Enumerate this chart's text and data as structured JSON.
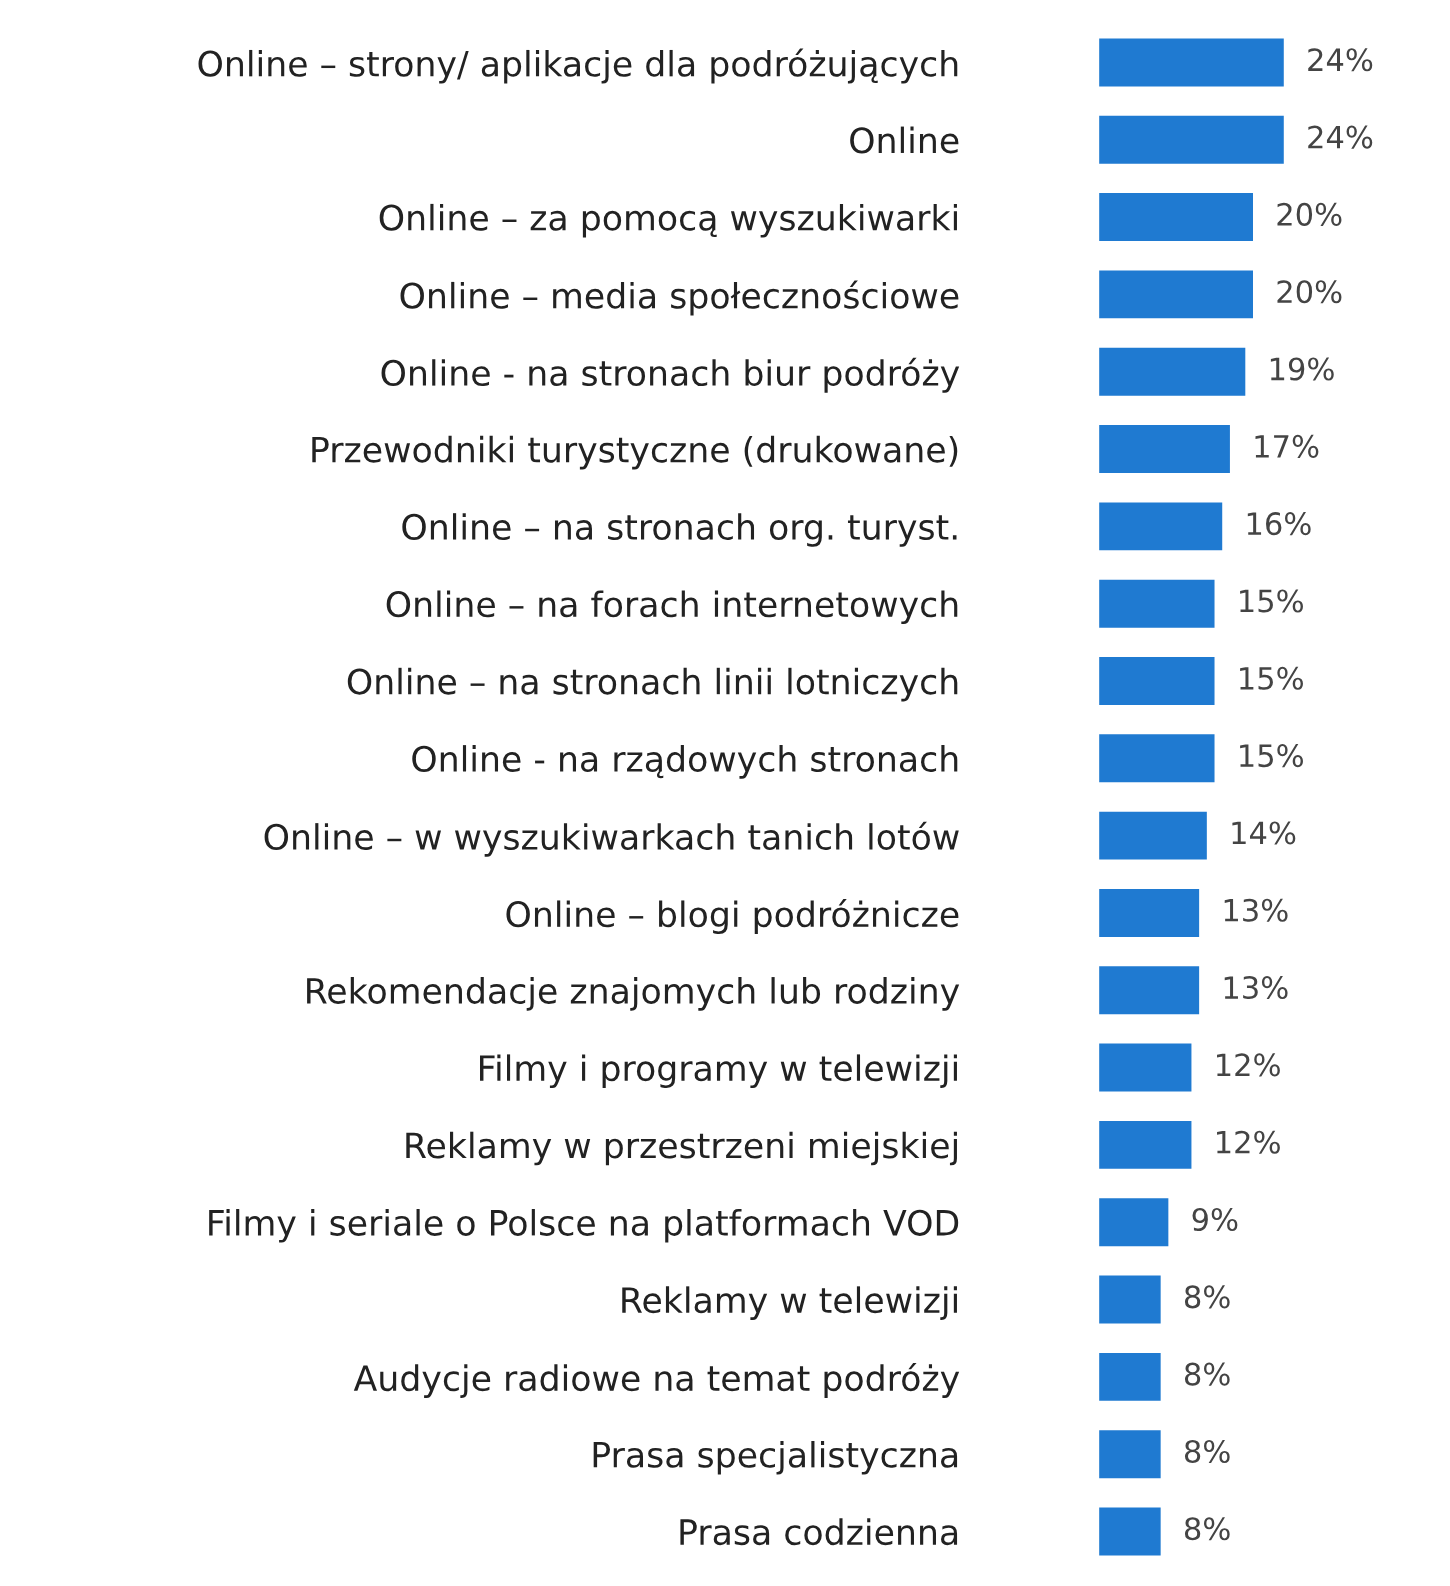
{
  "chart_data": {
    "type": "bar",
    "orientation": "horizontal",
    "categories": [
      "Online – strony/ aplikacje dla podróżujących",
      "Online",
      "Online – za pomocą wyszukiwarki",
      "Online – media społecznościowe",
      "Online - na stronach biur podróży",
      "Przewodniki turystyczne (drukowane)",
      "Online – na stronach org. turyst.",
      "Online – na forach internetowych",
      "Online – na stronach linii lotniczych",
      "Online - na rządowych stronach",
      "Online – w wyszukiwarkach tanich lotów",
      "Online – blogi podróżnicze",
      "Rekomendacje znajomych lub rodziny",
      "Filmy i programy w telewizji",
      "Reklamy w przestrzeni miejskiej",
      "Filmy i seriale o Polsce na platformach VOD",
      "Reklamy w telewizji",
      "Audycje radiowe na temat podróży",
      "Prasa specjalistyczna",
      "Prasa codzienna"
    ],
    "values": [
      24,
      24,
      20,
      20,
      19,
      17,
      16,
      15,
      15,
      15,
      14,
      13,
      13,
      12,
      12,
      9,
      8,
      8,
      8,
      8
    ],
    "value_labels": [
      "24%",
      "24%",
      "20%",
      "20%",
      "19%",
      "17%",
      "16%",
      "15%",
      "15%",
      "15%",
      "14%",
      "13%",
      "13%",
      "12%",
      "12%",
      "9%",
      "8%",
      "8%",
      "8%",
      "8%"
    ],
    "color": "#1f7ad1",
    "tick_labels": "y",
    "grid": false,
    "legend": false
  }
}
